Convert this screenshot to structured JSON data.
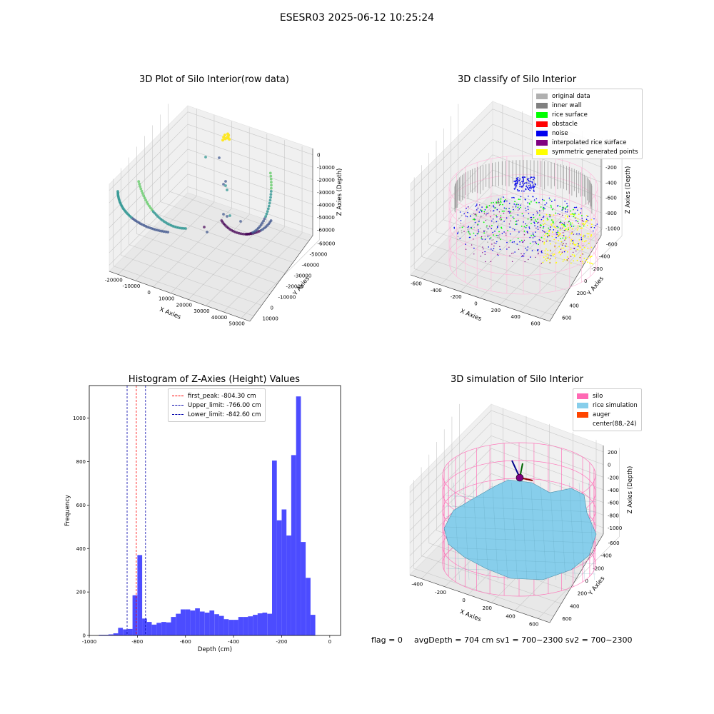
{
  "figure": {
    "title": "ESESR03 2025-06-12 10:25:24"
  },
  "chart_data": [
    {
      "type": "scatter",
      "panel": "raw",
      "title": "3D Plot of Silo Interior(row data)",
      "xlabel": "X Axies",
      "ylabel": "Y Axies",
      "zlabel": "Z Axies (Depth)",
      "x_ticks": [
        "-20000",
        "-10000",
        "0",
        "10000",
        "20000",
        "30000",
        "40000",
        "50000"
      ],
      "y_ticks": [
        "10000",
        "0",
        "-10000",
        "-20000",
        "-30000",
        "-40000",
        "-50000",
        "-60000"
      ],
      "z_ticks": [
        "0",
        "-10000",
        "-20000",
        "-30000",
        "-40000",
        "-50000",
        "-60000"
      ],
      "colormap": [
        "#440154",
        "#3b528b",
        "#21908c",
        "#5dc963",
        "#fde725"
      ],
      "grid": true
    },
    {
      "type": "scatter",
      "panel": "classify",
      "title": "3D classify of Silo Interior",
      "xlabel": "X Axies",
      "ylabel": "Y Axies",
      "zlabel": "Z Axies (Depth)",
      "x_ticks": [
        "-600",
        "-400",
        "-200",
        "0",
        "200",
        "400",
        "600"
      ],
      "y_ticks": [
        "600",
        "400",
        "200",
        "0",
        "-200",
        "-400",
        "-600"
      ],
      "z_ticks": [
        "0",
        "-200",
        "-400",
        "-600",
        "-800",
        "-1000"
      ],
      "z_top_tick": "200",
      "legend": [
        {
          "label": "original data",
          "color": "#b0b0b0"
        },
        {
          "label": "inner wall",
          "color": "#808080"
        },
        {
          "label": "rice surface",
          "color": "#00ff00"
        },
        {
          "label": "obstacle",
          "color": "#ff0000"
        },
        {
          "label": "noise",
          "color": "#0000ee"
        },
        {
          "label": "interpolated rice surface",
          "color": "#800080"
        },
        {
          "label": "symmetric generated points",
          "color": "#ffff00"
        }
      ],
      "legend_position": "top-right",
      "grid": true
    },
    {
      "type": "bar",
      "panel": "histogram",
      "title": "Histogram of Z-Axies (Height) Values",
      "xlabel": "Depth (cm)",
      "ylabel": "Frequency",
      "xlim": [
        -1000,
        45
      ],
      "ylim": [
        0,
        1150
      ],
      "x_ticks": [
        -1000,
        -800,
        -600,
        -400,
        -200,
        0
      ],
      "y_ticks": [
        0,
        200,
        400,
        600,
        800,
        1000
      ],
      "bin_width": 20,
      "bins_start": [
        -960,
        -940,
        -920,
        -900,
        -880,
        -860,
        -840,
        -820,
        -800,
        -780,
        -760,
        -740,
        -720,
        -700,
        -680,
        -660,
        -640,
        -620,
        -600,
        -580,
        -560,
        -540,
        -520,
        -500,
        -480,
        -460,
        -440,
        -420,
        -400,
        -380,
        -360,
        -340,
        -320,
        -300,
        -280,
        -260,
        -240,
        -220,
        -200,
        -180,
        -160,
        -140,
        -120,
        -100,
        -80,
        -60,
        -40,
        -20
      ],
      "values": [
        3,
        3,
        5,
        10,
        35,
        28,
        30,
        185,
        370,
        78,
        62,
        50,
        58,
        62,
        60,
        85,
        100,
        120,
        120,
        115,
        125,
        110,
        105,
        115,
        98,
        90,
        75,
        72,
        72,
        85,
        85,
        88,
        95,
        102,
        105,
        100,
        805,
        530,
        580,
        460,
        830,
        1100,
        430,
        265,
        95,
        0,
        0,
        0
      ],
      "bar_color": "#0000ff",
      "vlines": [
        {
          "label": "first_peak: -804.30 cm",
          "x": -804.3,
          "color": "#ff0000"
        },
        {
          "label": "Upper_limit: -766.00 cm",
          "x": -766.0,
          "color": "#0000aa"
        },
        {
          "label": "Lower_limit: -842.60 cm",
          "x": -842.6,
          "color": "#0000aa"
        }
      ],
      "legend_position": "top-center",
      "grid": false
    },
    {
      "type": "scatter",
      "panel": "simulation",
      "title": "3D simulation of Silo Interior",
      "xlabel": "X Axies",
      "ylabel": "Y Axies",
      "zlabel": "Z Axies (Depth)",
      "x_ticks": [
        "-400",
        "-200",
        "0",
        "200",
        "400",
        "600"
      ],
      "y_ticks": [
        "600",
        "400",
        "200",
        "0",
        "-200",
        "-400",
        "-600"
      ],
      "z_ticks": [
        "200",
        "0",
        "-200",
        "-400",
        "-600",
        "-800",
        "-1000"
      ],
      "legend": [
        {
          "label": "silo",
          "color": "#ff69b4"
        },
        {
          "label": "rice simulation",
          "color": "#87ceeb"
        },
        {
          "label": "auger",
          "color": "#ff4500"
        },
        {
          "label": "center(88,-24)",
          "color": "#ffffff"
        }
      ],
      "legend_position": "top-right",
      "grid": true
    }
  ],
  "footer": {
    "flag": "flag = 0",
    "avg": "avgDepth = 704 cm  sv1 = 700~2300  sv2 = 700~2300"
  }
}
